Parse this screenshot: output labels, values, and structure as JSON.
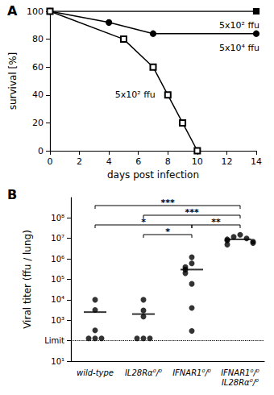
{
  "chart_data": [
    {
      "type": "line",
      "title": "A",
      "x_label": "days post infection",
      "y_label": "survival [%]",
      "xlim": [
        0,
        14
      ],
      "xticks": [
        0,
        2,
        4,
        6,
        8,
        10,
        12,
        14
      ],
      "ylim": [
        0,
        100
      ],
      "yticks": [
        0,
        20,
        40,
        60,
        80,
        100
      ],
      "grid": false,
      "series": [
        {
          "name": "5x10² ffu",
          "color": "#000000",
          "marker": "square",
          "x": [
            0,
            14
          ],
          "values": [
            100,
            100
          ]
        },
        {
          "name": "5x10⁴ ffu",
          "color": "#000000",
          "marker": "circle",
          "x": [
            0,
            4,
            7,
            14
          ],
          "values": [
            100,
            92,
            84,
            84
          ]
        },
        {
          "name": "5x10² ffu",
          "color": "#000000",
          "marker": "open_square",
          "x": [
            0,
            5,
            7,
            8,
            9,
            10
          ],
          "values": [
            100,
            80,
            60,
            40,
            20,
            0
          ]
        }
      ]
    },
    {
      "type": "scatter",
      "title": "B",
      "y_label": "Viral titer (ffu / lung)",
      "categories": [
        "wild-type",
        "IL28Rα⁰/⁰",
        "IFNAR1⁰/⁰",
        "IFNAR1⁰/⁰\nIL28Rα⁰/⁰"
      ],
      "log": "y",
      "ylim": [
        10,
        1000000000
      ],
      "yticks": [
        {
          "value": 10,
          "label": "10¹"
        },
        {
          "value": 100,
          "label": "Limit"
        },
        {
          "value": 1000,
          "label": "10³"
        },
        {
          "value": 10000,
          "label": "10⁴"
        },
        {
          "value": 100000,
          "label": "10⁵"
        },
        {
          "value": 1000000,
          "label": "10⁶"
        },
        {
          "value": 10000000,
          "label": "10⁷"
        },
        {
          "value": 100000000,
          "label": "10⁸"
        }
      ],
      "grid": false,
      "color": "#000000",
      "marker": "circle",
      "values": [
        [
          10000,
          3200,
          320,
          130,
          130,
          130
        ],
        [
          10000,
          3000,
          1500,
          130,
          130,
          130
        ],
        [
          1200000,
          600000,
          400000,
          300000,
          200000,
          60000,
          4000,
          300
        ],
        [
          15000000,
          12000000,
          10000000,
          9000000,
          8000000,
          7000000,
          6000000,
          5000000
        ]
      ],
      "means": [
        2500,
        2000,
        300000,
        9000000
      ],
      "reference_line": {
        "value": 100,
        "line_style": "dotted"
      },
      "comparisons": [
        {
          "groups": [
            "wild-type",
            "IFNAR1⁰/⁰\nIL28Rα⁰/⁰"
          ],
          "label": "***"
        },
        {
          "groups": [
            "IL28Rα⁰/⁰",
            "IFNAR1⁰/⁰\nIL28Rα⁰/⁰"
          ],
          "label": "***"
        },
        {
          "groups": [
            "wild-type",
            "IFNAR1⁰/⁰"
          ],
          "label": "*"
        },
        {
          "groups": [
            "IL28Rα⁰/⁰",
            "IFNAR1⁰/⁰"
          ],
          "label": "*"
        },
        {
          "groups": [
            "IFNAR1⁰/⁰",
            "IFNAR1⁰/⁰\nIL28Rα⁰/⁰"
          ],
          "label": "**"
        }
      ]
    }
  ]
}
